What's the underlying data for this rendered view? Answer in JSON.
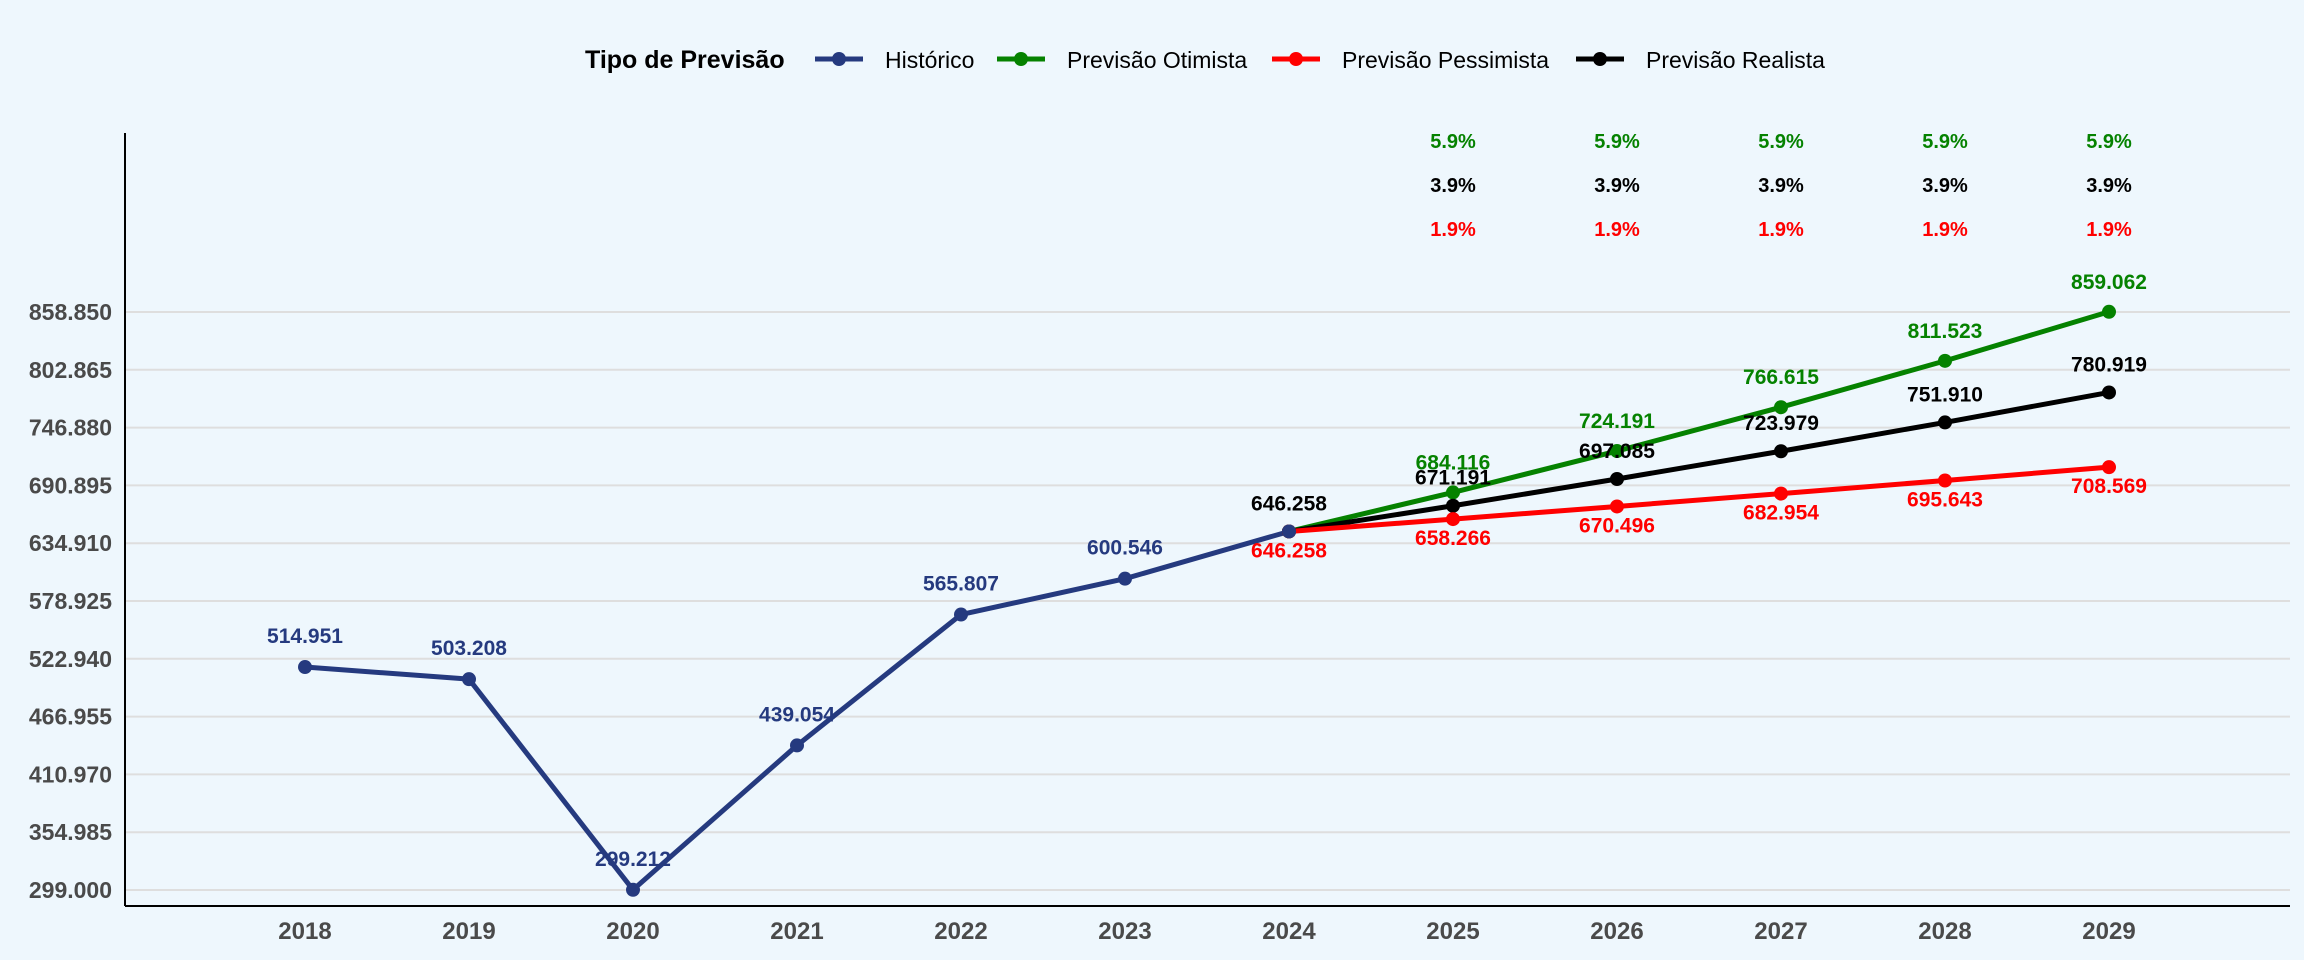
{
  "chart_data": {
    "type": "line",
    "legend": {
      "title": "Tipo de Previsão",
      "placement": "top"
    },
    "x": [
      "2018",
      "2019",
      "2020",
      "2021",
      "2022",
      "2023",
      "2024",
      "2025",
      "2026",
      "2027",
      "2028",
      "2029"
    ],
    "ylim": [
      299000,
      858850
    ],
    "yticks": [
      {
        "value": 299000,
        "label": "299.000"
      },
      {
        "value": 354985,
        "label": "354.985"
      },
      {
        "value": 410970,
        "label": "410.970"
      },
      {
        "value": 466955,
        "label": "466.955"
      },
      {
        "value": 522940,
        "label": "522.940"
      },
      {
        "value": 578925,
        "label": "578.925"
      },
      {
        "value": 634910,
        "label": "634.910"
      },
      {
        "value": 690895,
        "label": "690.895"
      },
      {
        "value": 746880,
        "label": "746.880"
      },
      {
        "value": 802865,
        "label": "802.865"
      },
      {
        "value": 858850,
        "label": "858.850"
      }
    ],
    "grid": true,
    "series": [
      {
        "name": "Histórico",
        "color": "#253a7f",
        "points": [
          {
            "x": "2018",
            "y": 514951,
            "label": "514.951"
          },
          {
            "x": "2019",
            "y": 503208,
            "label": "503.208"
          },
          {
            "x": "2020",
            "y": 299212,
            "label": "299.212"
          },
          {
            "x": "2021",
            "y": 439054,
            "label": "439.054"
          },
          {
            "x": "2022",
            "y": 565807,
            "label": "565.807"
          },
          {
            "x": "2023",
            "y": 600546,
            "label": "600.546"
          },
          {
            "x": "2024",
            "y": 646258,
            "label": ""
          }
        ]
      },
      {
        "name": "Previsão Otimista",
        "color": "#058200",
        "points": [
          {
            "x": "2024",
            "y": 646258,
            "label": ""
          },
          {
            "x": "2025",
            "y": 684116,
            "label": "684.116"
          },
          {
            "x": "2026",
            "y": 724191,
            "label": "724.191"
          },
          {
            "x": "2027",
            "y": 766615,
            "label": "766.615"
          },
          {
            "x": "2028",
            "y": 811523,
            "label": "811.523"
          },
          {
            "x": "2029",
            "y": 859062,
            "label": "859.062"
          }
        ]
      },
      {
        "name": "Previsão Pessimista",
        "color": "#ff0000",
        "points": [
          {
            "x": "2024",
            "y": 646258,
            "label": "646.258"
          },
          {
            "x": "2025",
            "y": 658266,
            "label": "658.266"
          },
          {
            "x": "2026",
            "y": 670496,
            "label": "670.496"
          },
          {
            "x": "2027",
            "y": 682954,
            "label": "682.954"
          },
          {
            "x": "2028",
            "y": 695643,
            "label": "695.643"
          },
          {
            "x": "2029",
            "y": 708569,
            "label": "708.569"
          }
        ]
      },
      {
        "name": "Previsão Realista",
        "color": "#000000",
        "points": [
          {
            "x": "2024",
            "y": 646258,
            "label": "646.258"
          },
          {
            "x": "2025",
            "y": 671191,
            "label": "671.191"
          },
          {
            "x": "2026",
            "y": 697085,
            "label": "697.085"
          },
          {
            "x": "2027",
            "y": 723979,
            "label": "723.979"
          },
          {
            "x": "2028",
            "y": 751910,
            "label": "751.910"
          },
          {
            "x": "2029",
            "y": 780919,
            "label": "780.919"
          }
        ]
      }
    ],
    "growth_annotations": [
      {
        "label": "5.9%",
        "color": "#058200",
        "years": [
          "2025",
          "2026",
          "2027",
          "2028",
          "2029"
        ]
      },
      {
        "label": "3.9%",
        "color": "#000000",
        "years": [
          "2025",
          "2026",
          "2027",
          "2028",
          "2029"
        ]
      },
      {
        "label": "1.9%",
        "color": "#ff0000",
        "years": [
          "2025",
          "2026",
          "2027",
          "2028",
          "2029"
        ]
      }
    ]
  }
}
